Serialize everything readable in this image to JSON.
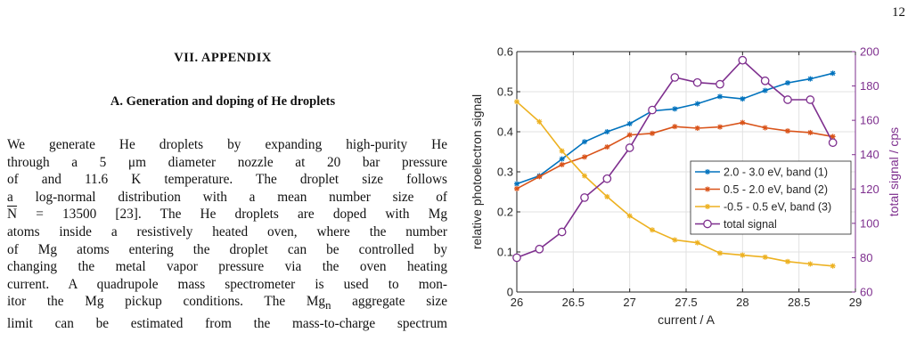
{
  "page": {
    "number": "12"
  },
  "section": {
    "heading": "VII.   APPENDIX"
  },
  "subsection": {
    "heading": "A.    Generation and doping of He droplets"
  },
  "paragraph": {
    "lines": [
      "We generate He droplets by expanding high-purity He",
      "through a 5 μm diameter nozzle at 20 bar pressure",
      "of and 11.6 K temperature.  The droplet size follows",
      "a log-normal distribution with a mean number size of",
      {
        "pre": "",
        "over": "N",
        "post": " = 13500 [23].  The He droplets are doped with Mg"
      },
      "atoms inside a resistively heated oven, where the number",
      "of Mg atoms entering the droplet can be controlled by",
      "changing the metal vapor pressure via the oven heating",
      "current.  A quadrupole mass spectrometer is used to mon-",
      {
        "pre": "itor the Mg pickup conditions.  The Mg",
        "sub": "n",
        "post": " aggregate size"
      },
      "limit can be estimated from the mass-to-charge spectrum"
    ]
  },
  "colors": {
    "band1": "#0072bd",
    "band2": "#d95319",
    "band3": "#edb120",
    "total": "#7e2f8e",
    "axis": "#262626",
    "grid": "#e2e2e2"
  },
  "chart_data": {
    "type": "line",
    "xlabel": "current / A",
    "ylabel": "relative photoelectron signal",
    "y2label": "total signal / cps",
    "xlim": [
      26,
      29
    ],
    "ylim": [
      0,
      0.6
    ],
    "y2lim": [
      60,
      200
    ],
    "xticks": [
      "26",
      "26.5",
      "27",
      "27.5",
      "28",
      "28.5",
      "29"
    ],
    "yticks": [
      "0",
      "0.1",
      "0.2",
      "0.3",
      "0.4",
      "0.5",
      "0.6"
    ],
    "y2ticks": [
      "60",
      "80",
      "100",
      "120",
      "140",
      "160",
      "180",
      "200"
    ],
    "grid": true,
    "legend_position": "center-right",
    "x": [
      26.0,
      26.2,
      26.4,
      26.6,
      26.8,
      27.0,
      27.2,
      27.4,
      27.6,
      27.8,
      28.0,
      28.2,
      28.4,
      28.6,
      28.8
    ],
    "series": [
      {
        "name": "2.0 - 3.0 eV, band (1)",
        "axis": "left",
        "marker": "star",
        "color": "#0072bd",
        "values": [
          0.27,
          0.29,
          0.332,
          0.375,
          0.4,
          0.42,
          0.452,
          0.457,
          0.47,
          0.488,
          0.482,
          0.503,
          0.522,
          0.532,
          0.546
        ]
      },
      {
        "name": "0.5 - 2.0 eV, band (2)",
        "axis": "left",
        "marker": "star",
        "color": "#d95319",
        "values": [
          0.258,
          0.288,
          0.318,
          0.337,
          0.362,
          0.392,
          0.396,
          0.413,
          0.409,
          0.412,
          0.423,
          0.41,
          0.402,
          0.398,
          0.388
        ]
      },
      {
        "name": "-0.5 - 0.5 eV, band (3)",
        "axis": "left",
        "marker": "star",
        "color": "#edb120",
        "values": [
          0.475,
          0.425,
          0.352,
          0.29,
          0.238,
          0.19,
          0.155,
          0.13,
          0.123,
          0.097,
          0.092,
          0.087,
          0.076,
          0.07,
          0.065
        ]
      },
      {
        "name": "total signal",
        "axis": "right",
        "marker": "circle",
        "color": "#7e2f8e",
        "values": [
          80,
          85,
          95,
          115,
          126,
          144,
          166,
          185,
          182,
          181,
          195,
          183,
          172,
          172,
          147
        ]
      }
    ]
  }
}
